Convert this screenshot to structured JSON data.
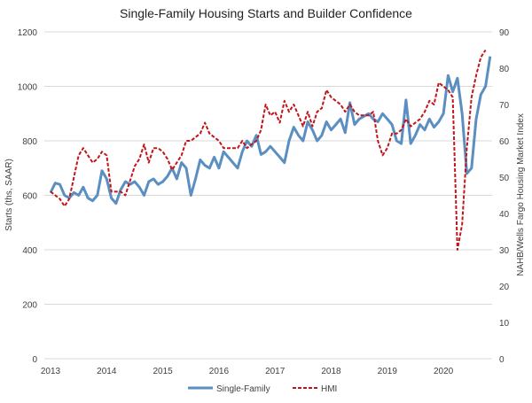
{
  "chart_data": {
    "type": "line",
    "title": "Single-Family Housing Starts and Builder Confidence",
    "ylabel": "Starts (ths, SAAR)",
    "y2label": "NAHB/Wells Fargo Housing Market Index",
    "ylim": [
      0,
      1200
    ],
    "y2lim": [
      0,
      90
    ],
    "yticks": [
      "0",
      "200",
      "400",
      "600",
      "800",
      "1000",
      "1200"
    ],
    "y2ticks": [
      "0",
      "10",
      "20",
      "30",
      "40",
      "50",
      "60",
      "70",
      "80",
      "90"
    ],
    "xticks": [
      "2013",
      "2014",
      "2015",
      "2016",
      "2017",
      "2018",
      "2019",
      "2020"
    ],
    "x_start": 2013,
    "x_step_months": 1,
    "grid": true,
    "legend_position": "bottom",
    "series": [
      {
        "name": "Single-Family",
        "axis": "left",
        "color": "#5b8ec1",
        "style": "solid",
        "values": [
          610,
          645,
          640,
          600,
          590,
          610,
          600,
          630,
          590,
          580,
          600,
          690,
          660,
          590,
          570,
          620,
          650,
          640,
          650,
          630,
          600,
          650,
          660,
          640,
          650,
          670,
          700,
          660,
          720,
          700,
          600,
          660,
          730,
          710,
          700,
          740,
          700,
          760,
          740,
          720,
          700,
          760,
          800,
          780,
          820,
          750,
          760,
          780,
          760,
          740,
          720,
          800,
          850,
          820,
          800,
          870,
          840,
          800,
          820,
          870,
          840,
          860,
          880,
          830,
          940,
          860,
          880,
          890,
          900,
          880,
          870,
          900,
          880,
          860,
          800,
          790,
          950,
          790,
          820,
          860,
          840,
          880,
          850,
          870,
          900,
          1040,
          980,
          1030,
          900,
          680,
          700,
          880,
          970,
          1000,
          1110
        ]
      },
      {
        "name": "HMI",
        "axis": "right",
        "color": "#c0161b",
        "style": "dashed",
        "values": [
          46,
          45,
          44,
          42,
          44,
          50,
          56,
          58,
          56,
          54,
          55,
          57,
          56,
          46,
          46,
          46,
          45,
          49,
          53,
          55,
          59,
          54,
          58,
          58,
          57,
          55,
          52,
          54,
          56,
          60,
          60,
          61,
          62,
          65,
          62,
          61,
          60,
          58,
          58,
          58,
          58,
          60,
          58,
          59,
          60,
          63,
          70,
          67,
          68,
          65,
          71,
          68,
          70,
          67,
          64,
          68,
          64,
          68,
          69,
          74,
          72,
          71,
          70,
          68,
          70,
          68,
          67,
          67,
          67,
          68,
          60,
          56,
          58,
          62,
          62,
          63,
          66,
          64,
          65,
          66,
          68,
          71,
          70,
          76,
          75,
          74,
          72,
          30,
          37,
          58,
          72,
          78,
          83,
          85
        ]
      }
    ]
  }
}
